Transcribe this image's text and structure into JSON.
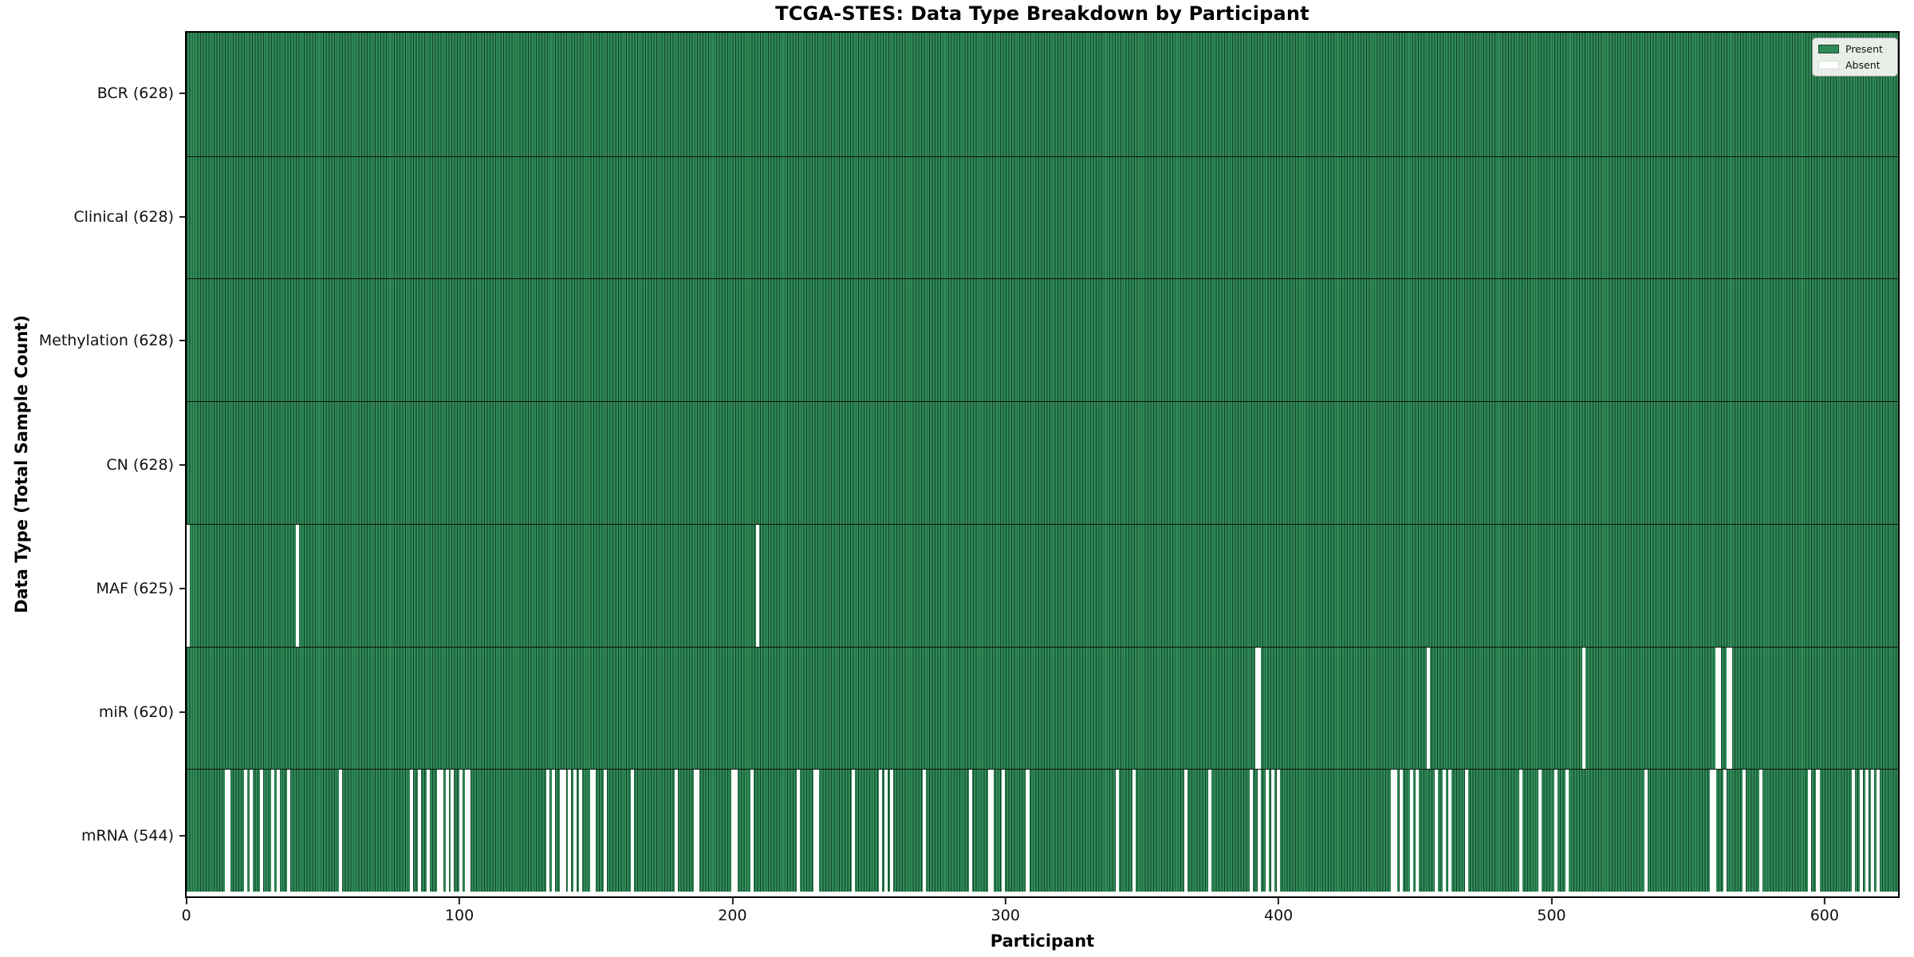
{
  "chart": {
    "title": "TCGA-STES: Data Type Breakdown by Participant",
    "xlabel": "Participant",
    "ylabel": "Data Type (Total Sample Count)"
  },
  "legend": {
    "items": [
      {
        "label": "Present",
        "color": "#2e8b57"
      },
      {
        "label": "Absent",
        "color": "#ffffff"
      }
    ]
  },
  "chart_data": {
    "type": "heatmap",
    "title": "TCGA-STES: Data Type Breakdown by Participant",
    "xlabel": "Participant",
    "ylabel": "Data Type (Total Sample Count)",
    "n_participants": 628,
    "x_ticks": [
      0,
      100,
      200,
      300,
      400,
      500,
      600
    ],
    "xlim": [
      0,
      628
    ],
    "grid": "row-separators",
    "legend_entries": [
      "Present",
      "Absent"
    ],
    "legend_position": "upper-right",
    "colors": {
      "present": "#2e8b57",
      "absent": "#ffffff",
      "bar_edge": "#14402a"
    },
    "rows": [
      {
        "label": "BCR",
        "total_present": 628,
        "display": "BCR (628)",
        "absent_participants": []
      },
      {
        "label": "Clinical",
        "total_present": 628,
        "display": "Clinical (628)",
        "absent_participants": []
      },
      {
        "label": "Methylation",
        "total_present": 628,
        "display": "Methylation (628)",
        "absent_participants": []
      },
      {
        "label": "CN",
        "total_present": 628,
        "display": "CN (628)",
        "absent_participants": []
      },
      {
        "label": "MAF",
        "total_present": 625,
        "display": "MAF (625)",
        "absent_participants": [
          0,
          40,
          209
        ]
      },
      {
        "label": "miR",
        "total_present": 620,
        "display": "miR (620)",
        "absent_participants": [
          392,
          393,
          455,
          512,
          561,
          562,
          565,
          566
        ]
      },
      {
        "label": "mRNA",
        "total_present": 544,
        "display": "mRNA (544)",
        "absent_participants": [
          14,
          15,
          21,
          23,
          27,
          31,
          33,
          37,
          56,
          82,
          85,
          88,
          92,
          93,
          95,
          97,
          100,
          102,
          103,
          132,
          134,
          137,
          138,
          140,
          142,
          144,
          148,
          149,
          153,
          163,
          179,
          186,
          187,
          200,
          201,
          207,
          224,
          230,
          231,
          244,
          254,
          256,
          258,
          270,
          287,
          294,
          295,
          299,
          308,
          341,
          347,
          366,
          375,
          390,
          393,
          396,
          398,
          400,
          442,
          443,
          445,
          449,
          451,
          458,
          461,
          463,
          469,
          489,
          496,
          502,
          506,
          535,
          559,
          560,
          564,
          571,
          577,
          595,
          598,
          611,
          614,
          616,
          618,
          620
        ]
      }
    ]
  }
}
